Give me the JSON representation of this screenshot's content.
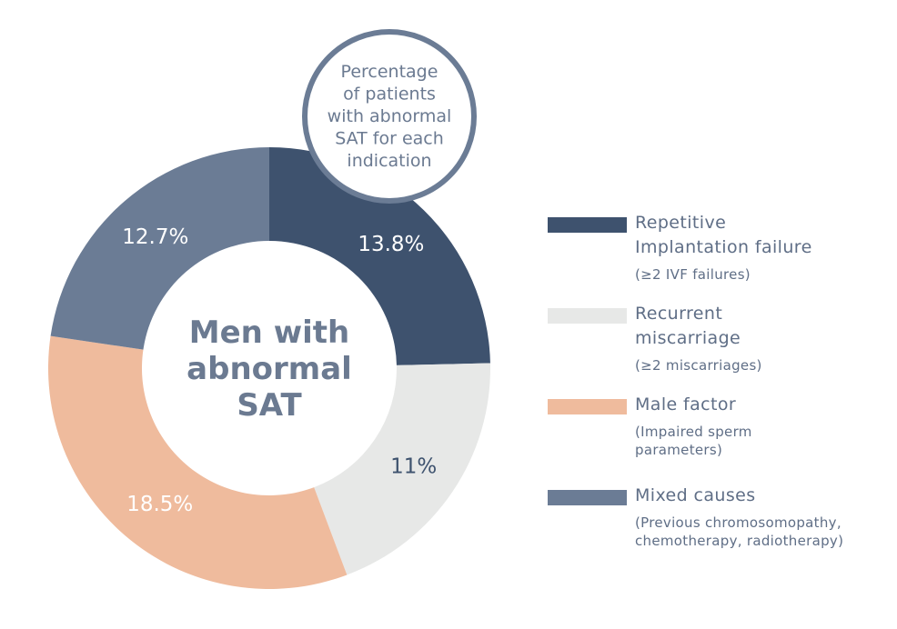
{
  "chart_data": {
    "type": "pie",
    "title": "Men with\nabnormal\nSAT",
    "annotation": "Percentage\nof patients\nwith abnormal\nSAT for each\nindication",
    "categories": [
      "Repetitive Implantation failure",
      "Recurrent miscarriage",
      "Male factor",
      "Mixed causes"
    ],
    "descriptions": [
      "(≥2 IVF failures)",
      "(≥2 miscarriages)",
      "(Impaired sperm\nparameters)",
      "(Previous chromosomopathy,\nchemotherapy, radiotherapy)"
    ],
    "values": [
      13.8,
      11,
      18.5,
      12.7
    ],
    "value_labels": [
      "13.8%",
      "11%",
      "18.5%",
      "12.7%"
    ],
    "colors": [
      "#3e526e",
      "#e7e8e7",
      "#efbb9d",
      "#6b7c95"
    ],
    "label_colors": [
      "#ffffff",
      "#3e526e",
      "#ffffff",
      "#ffffff"
    ],
    "legend_position": "right"
  },
  "legend": {
    "items": [
      {
        "label": "Repetitive\nImplantation failure",
        "desc": "(≥2 IVF failures)"
      },
      {
        "label": "Recurrent\nmiscarriage",
        "desc": "(≥2 miscarriages)"
      },
      {
        "label": "Male factor",
        "desc": "(Impaired sperm\nparameters)"
      },
      {
        "label": "Mixed causes",
        "desc": "(Previous chromosomopathy,\nchemotherapy, radiotherapy)"
      }
    ]
  }
}
